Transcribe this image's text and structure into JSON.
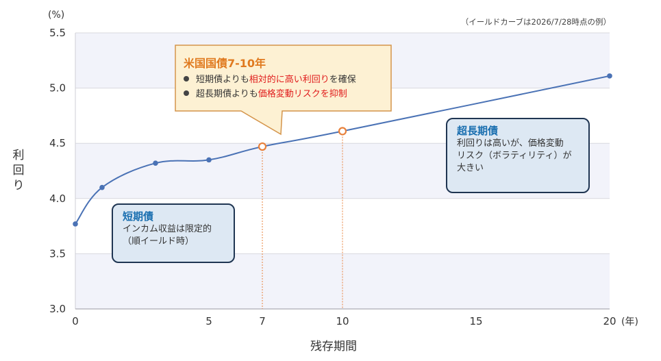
{
  "note": "（イールドカーブは2026/7/28時点の例）",
  "chart_data": {
    "type": "line",
    "y_unit_label": "(%)",
    "ylabel": "利回り",
    "xlabel": "残存期間",
    "x_unit_label": "(年)",
    "ylim": [
      3.0,
      5.5
    ],
    "xlim": [
      0,
      20
    ],
    "y_ticks": [
      "3.0",
      "3.5",
      "4.0",
      "4.5",
      "5.0",
      "5.5"
    ],
    "x_ticks": [
      "0",
      "5",
      "7",
      "10",
      "15",
      "20"
    ],
    "grid": "horizontal bands",
    "series": [
      {
        "x": [
          0,
          1,
          3,
          5,
          7,
          10,
          20
        ],
        "y": [
          3.77,
          4.1,
          4.32,
          4.35,
          4.47,
          4.61,
          5.11
        ]
      }
    ],
    "highlight_points": [
      7,
      10
    ]
  },
  "callout_us": {
    "title": "米国国債7-10年",
    "line1_pre": "短期債よりも",
    "line1_hl": "相対的に高い利回り",
    "line1_post": "を確保",
    "line2_pre": "超長期債よりも",
    "line2_hl": "価格変動リスクを抑制"
  },
  "callout_short": {
    "title": "短期債",
    "line1": "インカム収益は限定的",
    "line2": "（順イールド時）"
  },
  "callout_long": {
    "title": "超長期債",
    "line1": "利回りは高いが、価格変動",
    "line2": "リスク（ボラティリティ）が",
    "line3": "大きい"
  },
  "colors": {
    "line": "#4a72b5",
    "highlight": "#e8803a",
    "callout_yellow_fill": "#fdf1d3",
    "callout_yellow_border": "#d4944a",
    "callout_blue_fill": "#dde8f3",
    "callout_blue_border": "#1f3552",
    "highlight_text": "#e01b1b"
  }
}
